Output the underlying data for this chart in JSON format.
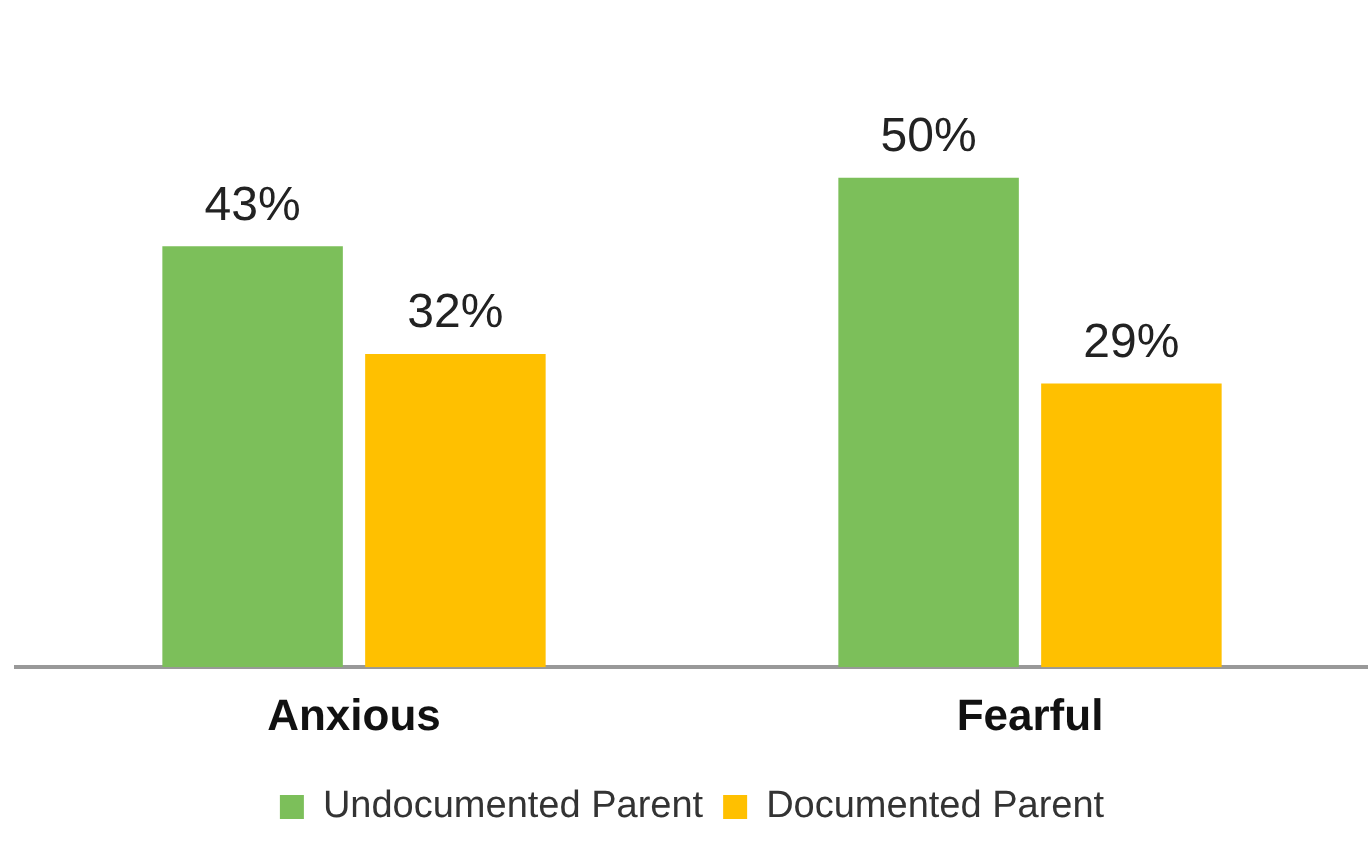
{
  "chart_data": {
    "type": "bar",
    "categories": [
      "Anxious",
      "Fearful"
    ],
    "series": [
      {
        "name": "Undocumented Parent",
        "color": "#7cbf5a",
        "values": [
          43,
          50
        ],
        "value_labels": [
          "43%",
          "50%"
        ]
      },
      {
        "name": "Documented Parent",
        "color": "#ffc000",
        "values": [
          32,
          29
        ],
        "value_labels": [
          "32%",
          "29%"
        ]
      }
    ],
    "tick_labels": "x",
    "grid": false,
    "legend": "bottom"
  }
}
